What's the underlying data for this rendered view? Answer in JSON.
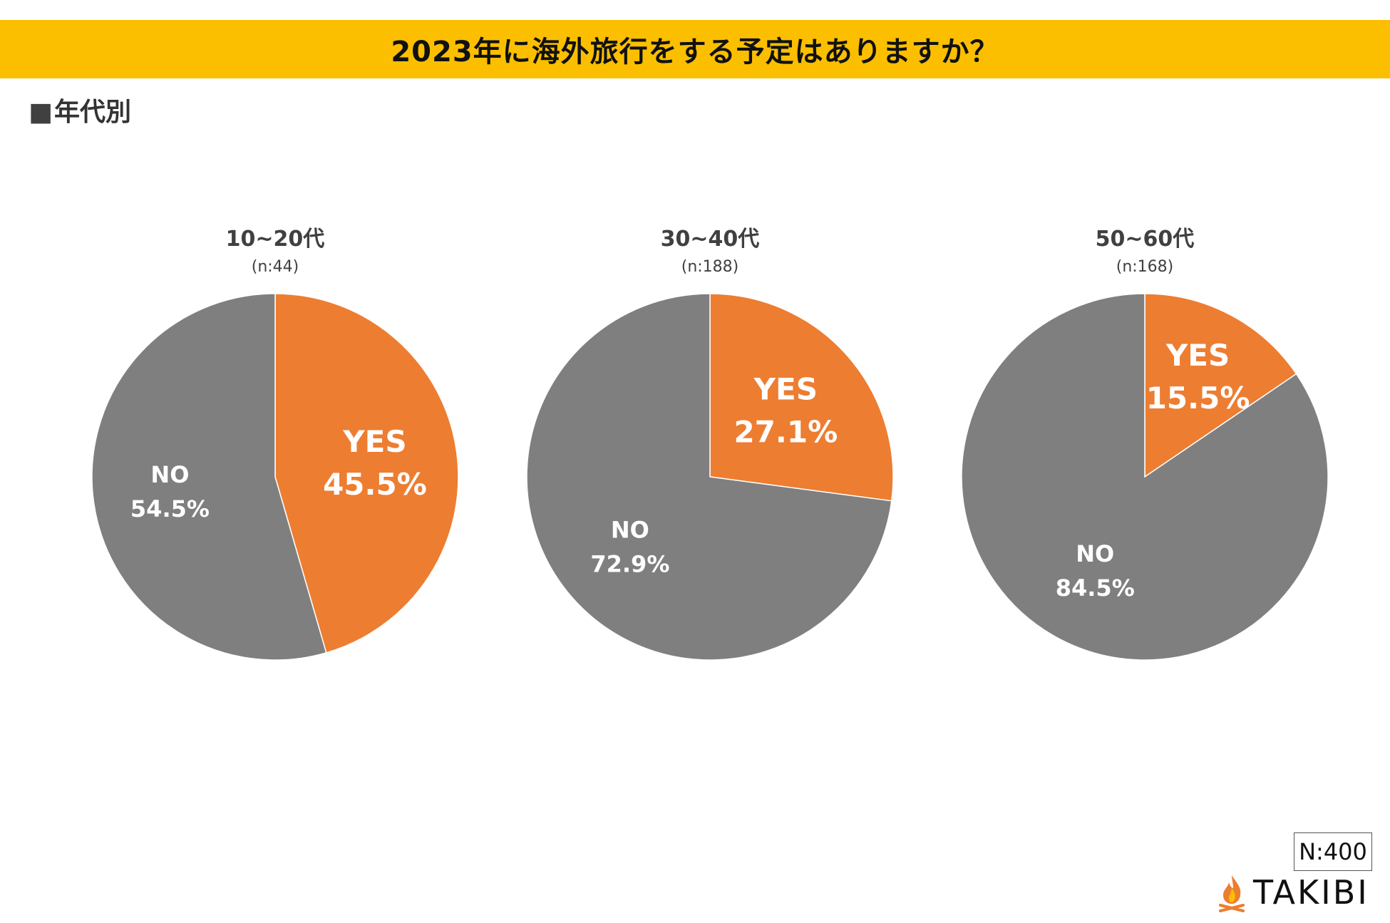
{
  "title": "2023年に海外旅行をする予定はありますか？",
  "section_label": "年代別",
  "total_n": "N:400",
  "logo_text": "TAKIBI",
  "colors": {
    "yes": "#ed7d31",
    "no": "#7f7f7f",
    "accent": "#fbbf00"
  },
  "chart_data": [
    {
      "type": "pie",
      "title": "10~20代",
      "subtitle": "(n:44)",
      "slices": [
        {
          "label": "YES",
          "value": 45.5,
          "display": "45.5%"
        },
        {
          "label": "NO",
          "value": 54.5,
          "display": "54.5%"
        }
      ]
    },
    {
      "type": "pie",
      "title": "30~40代",
      "subtitle": "(n:188)",
      "slices": [
        {
          "label": "YES",
          "value": 27.1,
          "display": "27.1%"
        },
        {
          "label": "NO",
          "value": 72.9,
          "display": "72.9%"
        }
      ]
    },
    {
      "type": "pie",
      "title": "50~60代",
      "subtitle": "(n:168)",
      "slices": [
        {
          "label": "YES",
          "value": 15.5,
          "display": "15.5%"
        },
        {
          "label": "NO",
          "value": 84.5,
          "display": "84.5%"
        }
      ]
    }
  ]
}
